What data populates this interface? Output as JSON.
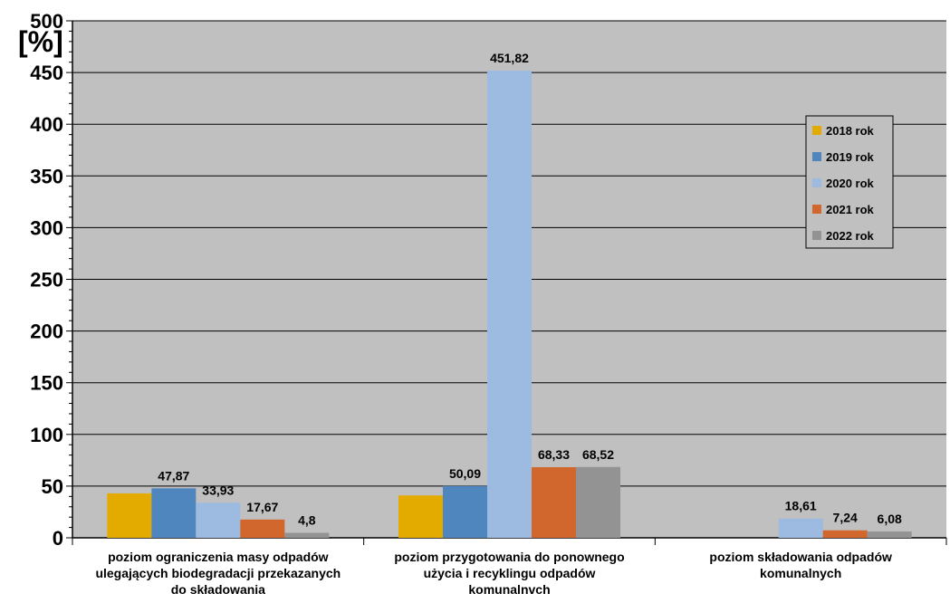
{
  "chart_data": {
    "type": "bar",
    "title": "",
    "ylabel": "[%]",
    "xlabel": "",
    "ylim": [
      0,
      500
    ],
    "yticks": [
      0,
      50,
      100,
      150,
      200,
      250,
      300,
      350,
      400,
      450,
      500
    ],
    "grid": true,
    "legend_position": "right",
    "categories": [
      [
        "poziom ograniczenia masy odpadów",
        "ulegających biodegradacji przekazanych",
        "do składowania"
      ],
      [
        "poziom przygotowania do ponownego",
        "użycia i recyklingu odpadów",
        "komunalnvch"
      ],
      [
        "poziom składowania odpadów",
        "komunalnych"
      ]
    ],
    "series": [
      {
        "name": "2018 rok",
        "color": "#E3AB00",
        "values": [
          43,
          41,
          null
        ],
        "labels": [
          "",
          "",
          ""
        ]
      },
      {
        "name": "2019 rok",
        "color": "#4F86BE",
        "values": [
          47.87,
          50.09,
          null
        ],
        "labels": [
          "47,87",
          "50,09",
          ""
        ]
      },
      {
        "name": "2020 rok",
        "color": "#9DBBE1",
        "values": [
          33.93,
          451.82,
          18.61
        ],
        "labels": [
          "33,93",
          "451,82",
          "18,61"
        ]
      },
      {
        "name": "2021 rok",
        "color": "#D2672D",
        "values": [
          17.67,
          68.33,
          7.24
        ],
        "labels": [
          "17,67",
          "68,33",
          "7,24"
        ]
      },
      {
        "name": "2022 rok",
        "color": "#939393",
        "values": [
          4.8,
          68.52,
          6.08
        ],
        "labels": [
          "4,8",
          "68,52",
          "6,08"
        ]
      }
    ],
    "colors": {
      "plot_background": "#C0C0C0",
      "gridline": "#000000"
    }
  }
}
